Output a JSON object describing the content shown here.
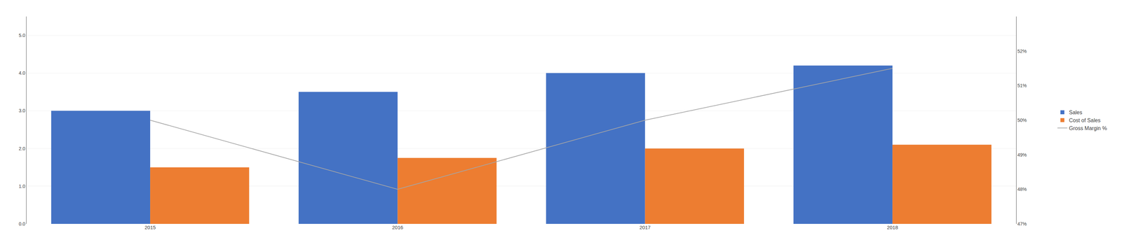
{
  "chart_data": {
    "type": "bar",
    "categories": [
      "2015",
      "2016",
      "2017",
      "2018"
    ],
    "series": [
      {
        "name": "Sales",
        "color": "#4472C4",
        "values": [
          3.0,
          3.5,
          4.0,
          4.2
        ]
      },
      {
        "name": "Cost of Sales",
        "color": "#ED7D31",
        "values": [
          1.5,
          1.75,
          2.0,
          2.1
        ]
      },
      {
        "name": "Gross Margin %",
        "type": "line",
        "color": "#A5A5A5",
        "axis": "y2",
        "values": [
          50.0,
          48.0,
          50.0,
          51.5
        ]
      }
    ],
    "ylim": [
      0.0,
      5.5
    ],
    "yticks": [
      {
        "value": 0.0,
        "label": "0.0"
      },
      {
        "value": 1.0,
        "label": "1.0"
      },
      {
        "value": 2.0,
        "label": "2.0"
      },
      {
        "value": 3.0,
        "label": "3.0"
      },
      {
        "value": 4.0,
        "label": "4.0"
      },
      {
        "value": 5.0,
        "label": "5.0"
      }
    ],
    "y2lim": [
      47,
      53
    ],
    "y2ticks": [
      {
        "value": 47,
        "label": "47%"
      },
      {
        "value": 48,
        "label": "48%"
      },
      {
        "value": 49,
        "label": "49%"
      },
      {
        "value": 50,
        "label": "50%"
      },
      {
        "value": 51,
        "label": "51%"
      },
      {
        "value": 52,
        "label": "52%"
      }
    ],
    "grid": true,
    "legend": "right"
  }
}
